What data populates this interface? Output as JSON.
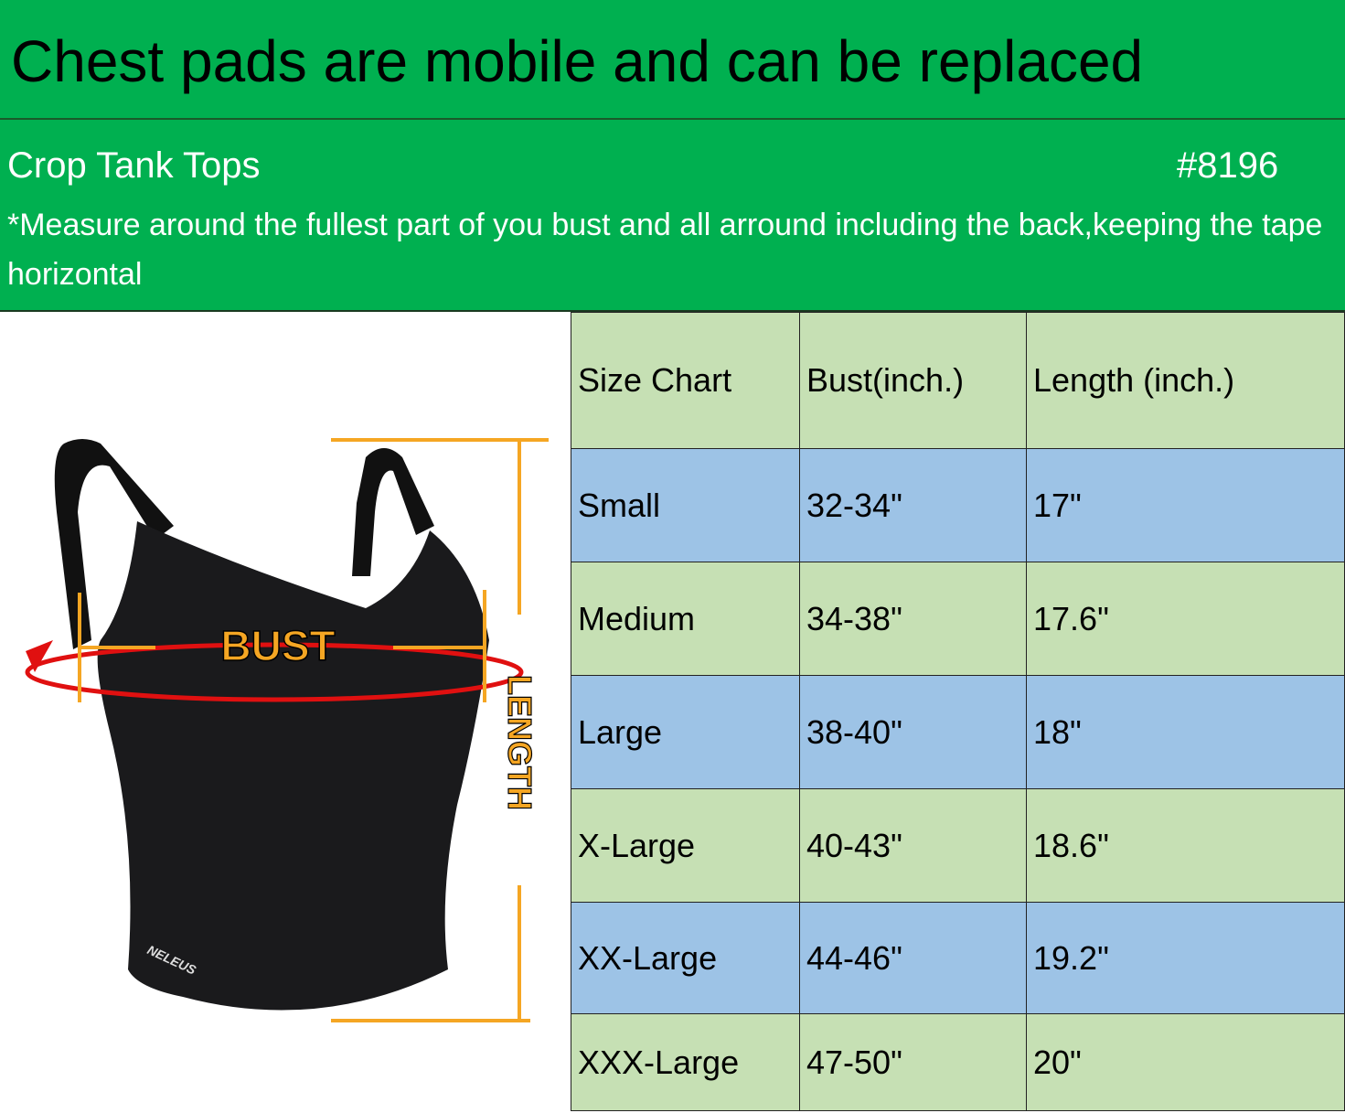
{
  "headline": "Chest pads are mobile and can be replaced",
  "subtitle": "Crop Tank Tops",
  "product_code": "#8196",
  "note": "*Measure around the fullest part of you bust and all arround including the back,keeping the tape horizontal",
  "image": {
    "bust_label": "BUST",
    "length_label": "LENGTH",
    "brand_logo": "NELEUS"
  },
  "colors": {
    "header_green": "#00b050",
    "row_green": "#c6e0b4",
    "row_blue": "#9dc3e6",
    "measure_orange": "#f5a623",
    "tape_red": "#e01010"
  },
  "table": {
    "headers": [
      "Size Chart",
      "Bust(inch.)",
      "Length (inch.)"
    ],
    "rows": [
      [
        "Small",
        "32-34\"",
        "17\""
      ],
      [
        "Medium",
        "34-38\"",
        "17.6\""
      ],
      [
        "Large",
        "38-40\"",
        "18\""
      ],
      [
        "X-Large",
        "40-43\"",
        "18.6\""
      ],
      [
        "XX-Large",
        "44-46\"",
        "19.2\""
      ],
      [
        "XXX-Large",
        "47-50\"",
        "20\""
      ]
    ]
  }
}
